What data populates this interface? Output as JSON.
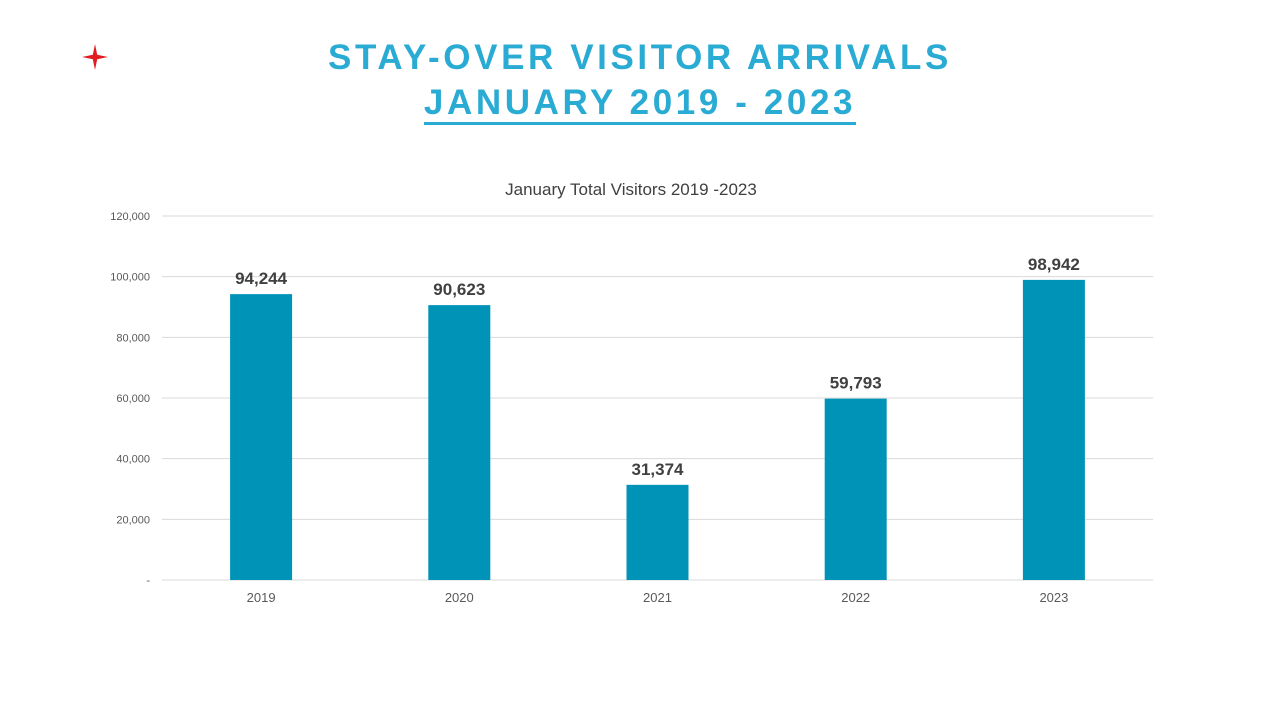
{
  "slide": {
    "title_line1": "STAY-OVER VISITOR ARRIVALS",
    "title_line2": "JANUARY 2019 - 2023",
    "accent_color": "#29ABD4",
    "logo_icon": "red-four-point-star-icon",
    "logo_color": "#E11B22"
  },
  "chart_data": {
    "type": "bar",
    "title": "January Total Visitors 2019 -2023",
    "categories": [
      "2019",
      "2020",
      "2021",
      "2022",
      "2023"
    ],
    "values": [
      94244,
      90623,
      31374,
      59793,
      98942
    ],
    "data_labels": [
      "94,244",
      "90,623",
      "31,374",
      "59,793",
      "98,942"
    ],
    "xlabel": "",
    "ylabel": "",
    "ylim": [
      0,
      120000
    ],
    "yticks": [
      0,
      20000,
      40000,
      60000,
      80000,
      100000,
      120000
    ],
    "ytick_labels": [
      "-",
      "20,000",
      "40,000",
      "60,000",
      "80,000",
      "100,000",
      "120,000"
    ],
    "grid": true,
    "legend": false,
    "bar_color": "#0093B8"
  }
}
